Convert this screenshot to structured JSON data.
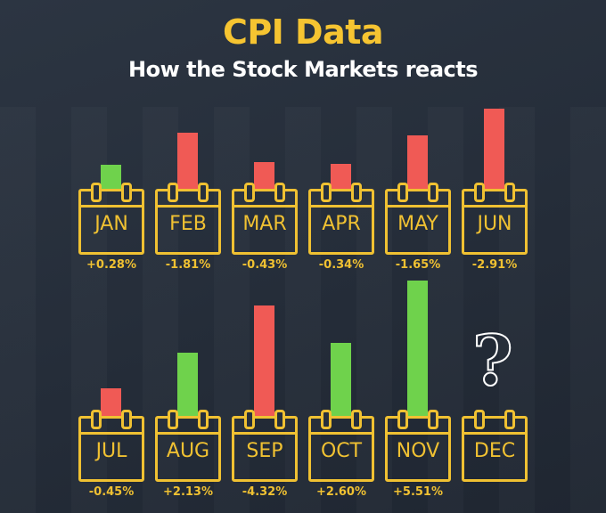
{
  "chart_data": {
    "type": "bar",
    "title": "CPI Data",
    "subtitle": "How the Stock Markets reacts",
    "categories": [
      "JAN",
      "FEB",
      "MAR",
      "APR",
      "MAY",
      "JUN",
      "JUL",
      "AUG",
      "SEP",
      "OCT",
      "NOV",
      "DEC"
    ],
    "values": [
      0.28,
      -1.81,
      -0.43,
      -0.34,
      -1.65,
      -2.91,
      -0.45,
      2.13,
      -4.32,
      2.6,
      5.51,
      null
    ],
    "labels": [
      "+0.28%",
      "-1.81%",
      "-0.43%",
      "-0.34%",
      "-1.65%",
      "-2.91%",
      "-0.45%",
      "+2.13%",
      "-4.32%",
      "+2.60%",
      "+5.51%",
      ""
    ],
    "colors": {
      "positive": "#6fd24c",
      "negative": "#f05a55",
      "accent": "#f0c132"
    },
    "unknown_marker": "?"
  }
}
